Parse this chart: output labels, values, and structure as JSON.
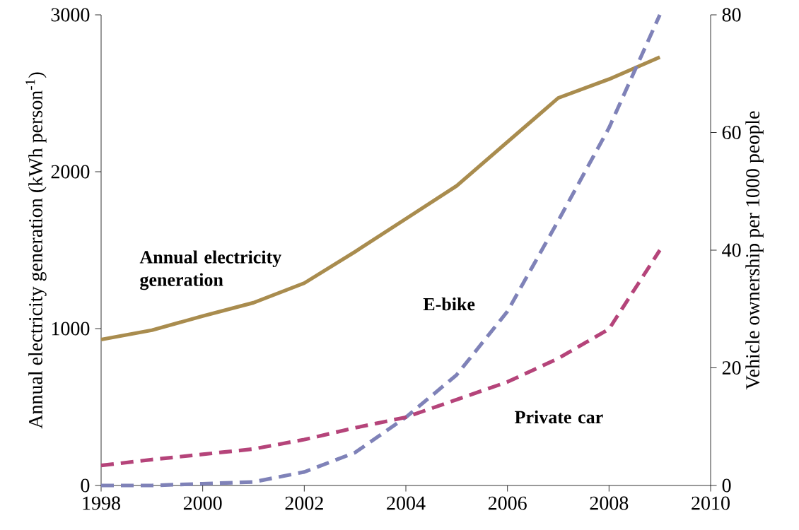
{
  "chart_data": {
    "type": "line",
    "ylabel": "Annual electricity generation (kWh person$^{-1}$)",
    "y2label": "Vehicle ownership per 1000 people",
    "x": [
      1998,
      1999,
      2000,
      2001,
      2002,
      2003,
      2004,
      2005,
      2006,
      2007,
      2008,
      2009
    ],
    "series": [
      {
        "name": "Annual electricity generation",
        "color": "#a98c4e",
        "line_style": "solid",
        "values": [
          930,
          990,
          1080,
          1165,
          1290,
          1490,
          1700,
          1910,
          2190,
          2470,
          2590,
          2730
        ]
      },
      {
        "name": "E-bike",
        "color": "#7f82b8",
        "line_style": "dashed",
        "axis": "y2",
        "values": [
          0,
          0,
          0.3,
          0.6,
          2.3,
          5.6,
          11.6,
          18.8,
          29.6,
          45,
          60.8,
          80
        ]
      },
      {
        "name": "Private car",
        "color": "#b5447a",
        "line_style": "dashed",
        "axis": "y2",
        "values": [
          3.4,
          4.4,
          5.3,
          6.2,
          7.8,
          9.8,
          11.6,
          14.6,
          17.6,
          21.6,
          26.6,
          40
        ]
      }
    ],
    "xlim": [
      1998,
      2010
    ],
    "xticks": [
      1998,
      2000,
      2002,
      2004,
      2006,
      2008,
      2010
    ],
    "ylim": [
      0,
      3000
    ],
    "yticks": [
      0,
      1000,
      2000,
      3000
    ],
    "y2lim": [
      0,
      80
    ],
    "y2ticks": [
      0,
      20,
      40,
      60,
      80
    ],
    "grid": false,
    "marker": "none"
  }
}
